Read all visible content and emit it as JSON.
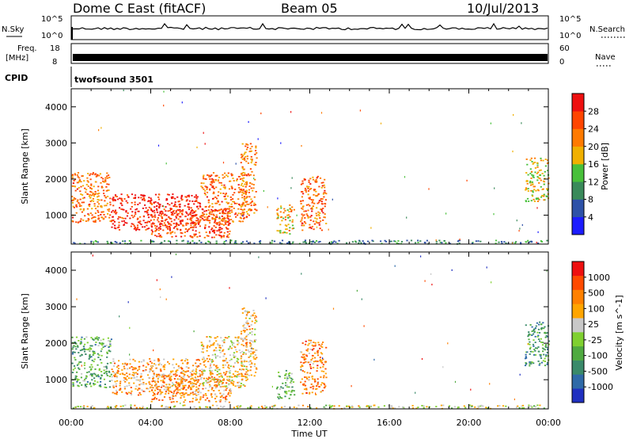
{
  "header": {
    "site": "Dome C East (fitACF)",
    "beam": "Beam 05",
    "date": "10/Jul/2013"
  },
  "strips": {
    "nsky": {
      "label": "N.Sky",
      "ticks": [
        "10^5",
        "10^0"
      ]
    },
    "nsearch": {
      "label": "N.Search",
      "ticks": [
        "10^5",
        "10^0"
      ]
    },
    "freq": {
      "label_line1": "Freq.",
      "label_line2": "[MHz]",
      "ticks": [
        "18",
        "8"
      ]
    },
    "nave": {
      "label": "Nave",
      "ticks": [
        "60",
        "0"
      ]
    },
    "cpid": {
      "label": "CPID",
      "value": "twofsound 3501"
    }
  },
  "chart_data": [
    {
      "type": "heatmap",
      "name": "power",
      "ylabel": "Slant Range [km]",
      "ylim": [
        200,
        4500
      ],
      "yticks": [
        1000,
        2000,
        3000,
        4000
      ],
      "xlim": [
        0,
        24
      ],
      "colorbar": {
        "label": "Power [dB]",
        "ticks": [
          "4",
          "8",
          "12",
          "16",
          "20",
          "24",
          "28"
        ]
      },
      "colors": [
        "#1c1cff",
        "#2e52a8",
        "#3a8a5a",
        "#48c03a",
        "#f0b000",
        "#ff7a00",
        "#ff4500",
        "#ee1010"
      ],
      "regions": [
        {
          "t": [
            0.0,
            2.0
          ],
          "r": [
            800,
            2200
          ],
          "level": 0.72
        },
        {
          "t": [
            2.0,
            6.5
          ],
          "r": [
            600,
            1600
          ],
          "level": 0.9
        },
        {
          "t": [
            4.0,
            8.0
          ],
          "r": [
            400,
            1200
          ],
          "level": 0.82
        },
        {
          "t": [
            6.5,
            8.8
          ],
          "r": [
            800,
            2200
          ],
          "level": 0.74
        },
        {
          "t": [
            8.5,
            9.3
          ],
          "r": [
            1000,
            3000
          ],
          "level": 0.68
        },
        {
          "t": [
            10.3,
            11.2
          ],
          "r": [
            500,
            1300
          ],
          "level": 0.6
        },
        {
          "t": [
            11.5,
            12.8
          ],
          "r": [
            600,
            2100
          ],
          "level": 0.75
        },
        {
          "t": [
            22.8,
            24.0
          ],
          "r": [
            1400,
            2600
          ],
          "level": 0.55
        },
        {
          "t": [
            0.0,
            24.0
          ],
          "r": [
            220,
            320
          ],
          "level": 0.3
        }
      ]
    },
    {
      "type": "heatmap",
      "name": "velocity",
      "ylabel": "Slant Range [km]",
      "xlabel": "Time UT",
      "ylim": [
        200,
        4500
      ],
      "yticks": [
        1000,
        2000,
        3000,
        4000
      ],
      "xlim": [
        0,
        24
      ],
      "xticks": [
        "00:00",
        "04:00",
        "08:00",
        "12:00",
        "16:00",
        "20:00",
        "00:00"
      ],
      "colorbar": {
        "label": "Velocity [m s^-1]",
        "ticks": [
          "1000",
          "500",
          "100",
          "25",
          "-25",
          "-100",
          "-500",
          "-1000"
        ]
      },
      "colors": [
        "#2030c0",
        "#2f6aa8",
        "#3a8a6a",
        "#4faa40",
        "#7fd030",
        "#c8c8c8",
        "#ffa500",
        "#ff8000",
        "#ff4a00",
        "#ee1010"
      ],
      "regions": [
        {
          "t": [
            0.0,
            2.0
          ],
          "r": [
            800,
            2200
          ],
          "level": 0.35
        },
        {
          "t": [
            2.0,
            6.5
          ],
          "r": [
            600,
            1600
          ],
          "level": 0.7
        },
        {
          "t": [
            4.0,
            8.0
          ],
          "r": [
            400,
            1200
          ],
          "level": 0.72
        },
        {
          "t": [
            6.5,
            8.8
          ],
          "r": [
            800,
            2200
          ],
          "level": 0.62
        },
        {
          "t": [
            8.5,
            9.3
          ],
          "r": [
            1000,
            3000
          ],
          "level": 0.65
        },
        {
          "t": [
            10.3,
            11.2
          ],
          "r": [
            500,
            1300
          ],
          "level": 0.4
        },
        {
          "t": [
            11.5,
            12.8
          ],
          "r": [
            600,
            2100
          ],
          "level": 0.75
        },
        {
          "t": [
            22.8,
            24.0
          ],
          "r": [
            1400,
            2600
          ],
          "level": 0.3
        },
        {
          "t": [
            0.0,
            24.0
          ],
          "r": [
            220,
            320
          ],
          "level": 0.55
        }
      ]
    }
  ]
}
